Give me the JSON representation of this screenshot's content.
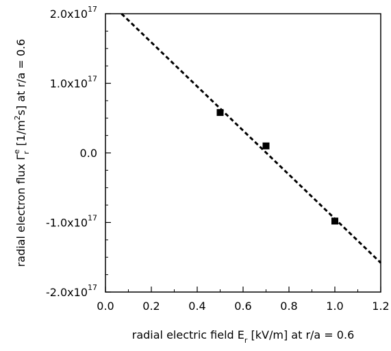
{
  "chart_data": {
    "type": "scatter",
    "title": "",
    "xlabel": {
      "pre": "radial electric field E",
      "sub": "r",
      "post": " [kV/m] at r/a = 0.6"
    },
    "ylabel": {
      "pre": "radial electron flux Γ",
      "sub": "r",
      "sup": "e",
      "mid": " [1/m",
      "sup2": "2",
      "post": "s] at r/a = 0.6"
    },
    "xlim": [
      0.0,
      1.2
    ],
    "ylim": [
      -2e+17,
      2e+17
    ],
    "grid": false,
    "x_ticks": [
      {
        "value": 0.0,
        "label": "0.0"
      },
      {
        "value": 0.2,
        "label": "0.2"
      },
      {
        "value": 0.4,
        "label": "0.4"
      },
      {
        "value": 0.6,
        "label": "0.6"
      },
      {
        "value": 0.8,
        "label": "0.8"
      },
      {
        "value": 1.0,
        "label": "1.0"
      },
      {
        "value": 1.2,
        "label": "1.2"
      }
    ],
    "y_ticks": [
      {
        "value": 2e+17,
        "base": "2.0x10",
        "exp": "17"
      },
      {
        "value": 1e+17,
        "base": "1.0x10",
        "exp": "17"
      },
      {
        "value": 0.0,
        "base": "0.0",
        "exp": ""
      },
      {
        "value": -1e+17,
        "base": "-1.0x10",
        "exp": "17"
      },
      {
        "value": -2e+17,
        "base": "-2.0x10",
        "exp": "17"
      }
    ],
    "series": [
      {
        "kind": "points",
        "marker": "square",
        "color": "#000000",
        "x": [
          0.5,
          0.7,
          1.0
        ],
        "y": [
          5.8e+16,
          1e+16,
          -9.8e+16
        ]
      },
      {
        "kind": "fit-line",
        "style": "dashed",
        "color": "#000000",
        "x": [
          0.07,
          1.2
        ],
        "y": [
          2e+17,
          -1.58e+17
        ]
      }
    ]
  }
}
